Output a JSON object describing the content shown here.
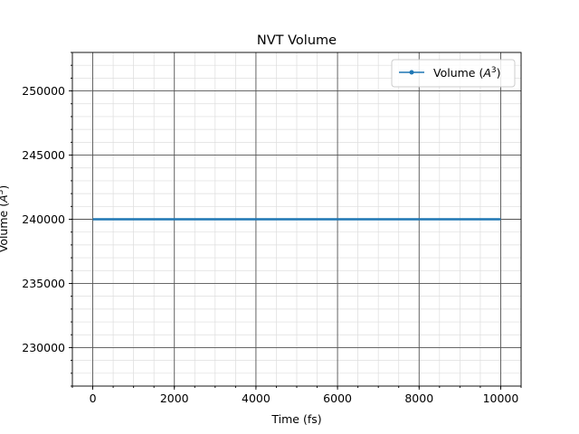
{
  "chart_data": {
    "type": "line",
    "title": "NVT Volume",
    "xlabel": "Time (fs)",
    "ylabel": "Volume (A^3)",
    "xlim": [
      -500,
      10500
    ],
    "ylim": [
      227000,
      253000
    ],
    "x_ticks": [
      0,
      2000,
      4000,
      6000,
      8000,
      10000
    ],
    "y_ticks": [
      230000,
      235000,
      240000,
      245000,
      250000
    ],
    "x_minor_step": 500,
    "y_minor_step": 1000,
    "grid": true,
    "legend_position": "top-right",
    "series": [
      {
        "name": "Volume (A^3)",
        "color": "#1f77b4",
        "marker": "point",
        "x_start": 0,
        "x_end": 10000,
        "x_step": 10,
        "value": 240000
      }
    ]
  }
}
